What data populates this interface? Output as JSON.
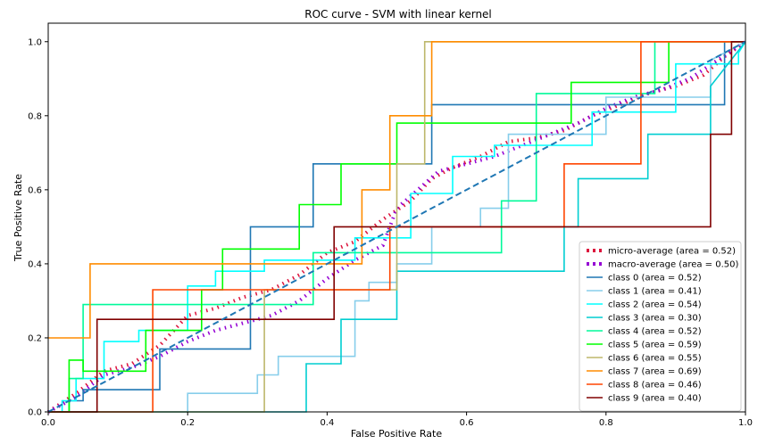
{
  "chart_data": {
    "type": "line",
    "title": "ROC curve - SVM with linear kernel",
    "xlabel": "False Positive Rate",
    "ylabel": "True Positive Rate",
    "xlim": [
      0,
      1
    ],
    "ylim": [
      0,
      1.05
    ],
    "x_ticks": [
      "0.0",
      "0.2",
      "0.4",
      "0.6",
      "0.8",
      "1.0"
    ],
    "y_ticks": [
      "0.0",
      "0.2",
      "0.4",
      "0.6",
      "0.8",
      "1.0"
    ],
    "grid": false,
    "legend_position": "lower-right",
    "diagonal": {
      "x": [
        0,
        1
      ],
      "y": [
        0,
        1
      ],
      "color": "#1f77b4",
      "style": "dashed"
    },
    "series": [
      {
        "name": "micro-average (area = 0.52)",
        "color": "#dc143c",
        "style": "dotted",
        "x": [
          0,
          0.04,
          0.08,
          0.12,
          0.16,
          0.2,
          0.24,
          0.28,
          0.32,
          0.36,
          0.4,
          0.44,
          0.48,
          0.52,
          0.55,
          0.58,
          0.62,
          0.66,
          0.7,
          0.74,
          0.78,
          0.82,
          0.86,
          0.9,
          0.94,
          0.97,
          1
        ],
        "y": [
          0,
          0.05,
          0.11,
          0.13,
          0.18,
          0.26,
          0.28,
          0.31,
          0.33,
          0.37,
          0.43,
          0.46,
          0.52,
          0.57,
          0.63,
          0.66,
          0.69,
          0.73,
          0.74,
          0.76,
          0.8,
          0.83,
          0.86,
          0.88,
          0.91,
          0.96,
          1
        ]
      },
      {
        "name": "macro-average (area = 0.50)",
        "color": "#9400d3",
        "style": "dotted",
        "x": [
          0,
          0.04,
          0.08,
          0.12,
          0.16,
          0.2,
          0.24,
          0.28,
          0.32,
          0.36,
          0.4,
          0.44,
          0.48,
          0.5,
          0.53,
          0.56,
          0.6,
          0.64,
          0.68,
          0.72,
          0.76,
          0.8,
          0.84,
          0.88,
          0.92,
          0.96,
          1
        ],
        "y": [
          0,
          0.04,
          0.1,
          0.12,
          0.15,
          0.19,
          0.22,
          0.24,
          0.26,
          0.3,
          0.36,
          0.41,
          0.45,
          0.55,
          0.6,
          0.65,
          0.67,
          0.69,
          0.72,
          0.75,
          0.78,
          0.82,
          0.85,
          0.87,
          0.9,
          0.95,
          1
        ]
      },
      {
        "name": "class 0 (area = 0.52)",
        "color": "#1f77b4",
        "style": "solid",
        "x": [
          0,
          0.03,
          0.03,
          0.05,
          0.05,
          0.16,
          0.16,
          0.29,
          0.29,
          0.38,
          0.38,
          0.55,
          0.55,
          0.97,
          0.97,
          1
        ],
        "y": [
          0,
          0,
          0.03,
          0.03,
          0.06,
          0.06,
          0.17,
          0.17,
          0.5,
          0.5,
          0.67,
          0.67,
          0.83,
          0.83,
          1,
          1
        ]
      },
      {
        "name": "class 1 (area = 0.41)",
        "color": "#87ceeb",
        "style": "solid",
        "x": [
          0,
          0.2,
          0.2,
          0.3,
          0.3,
          0.33,
          0.33,
          0.44,
          0.44,
          0.46,
          0.46,
          0.5,
          0.5,
          0.55,
          0.55,
          0.62,
          0.62,
          0.66,
          0.66,
          0.8,
          0.8,
          0.95,
          0.95,
          1
        ],
        "y": [
          0,
          0,
          0.05,
          0.05,
          0.1,
          0.1,
          0.15,
          0.15,
          0.3,
          0.3,
          0.35,
          0.35,
          0.4,
          0.4,
          0.5,
          0.5,
          0.55,
          0.55,
          0.75,
          0.75,
          0.85,
          0.85,
          0.95,
          1
        ]
      },
      {
        "name": "class 2 (area = 0.54)",
        "color": "#00ffff",
        "style": "solid",
        "x": [
          0,
          0.02,
          0.02,
          0.04,
          0.04,
          0.08,
          0.08,
          0.13,
          0.13,
          0.2,
          0.2,
          0.24,
          0.24,
          0.31,
          0.31,
          0.44,
          0.44,
          0.52,
          0.52,
          0.58,
          0.58,
          0.64,
          0.64,
          0.78,
          0.78,
          0.9,
          0.9,
          0.99,
          0.99,
          1
        ],
        "y": [
          0,
          0,
          0.03,
          0.03,
          0.09,
          0.09,
          0.19,
          0.19,
          0.22,
          0.22,
          0.34,
          0.34,
          0.38,
          0.38,
          0.41,
          0.41,
          0.47,
          0.47,
          0.59,
          0.59,
          0.69,
          0.69,
          0.72,
          0.72,
          0.81,
          0.81,
          0.94,
          0.94,
          0.97,
          1
        ]
      },
      {
        "name": "class 3 (area = 0.30)",
        "color": "#00ced1",
        "style": "solid",
        "x": [
          0,
          0.37,
          0.37,
          0.42,
          0.42,
          0.5,
          0.5,
          0.74,
          0.74,
          0.76,
          0.76,
          0.86,
          0.86,
          0.95,
          0.95,
          1
        ],
        "y": [
          0,
          0,
          0.13,
          0.13,
          0.25,
          0.25,
          0.38,
          0.38,
          0.5,
          0.5,
          0.63,
          0.63,
          0.75,
          0.75,
          0.88,
          1
        ]
      },
      {
        "name": "class 4 (area = 0.52)",
        "color": "#00fa9a",
        "style": "solid",
        "x": [
          0,
          0.03,
          0.03,
          0.05,
          0.05,
          0.38,
          0.38,
          0.65,
          0.65,
          0.7,
          0.7,
          0.76,
          0.76,
          0.8,
          0.8,
          0.87,
          0.87,
          1
        ],
        "y": [
          0,
          0,
          0.09,
          0.09,
          0.29,
          0.29,
          0.43,
          0.43,
          0.57,
          0.57,
          0.86,
          0.86,
          0.86,
          0.86,
          0.86,
          0.86,
          1,
          1
        ]
      },
      {
        "name": "class 5 (area = 0.59)",
        "color": "#00ff00",
        "style": "solid",
        "x": [
          0,
          0.03,
          0.03,
          0.05,
          0.05,
          0.14,
          0.14,
          0.22,
          0.22,
          0.25,
          0.25,
          0.36,
          0.36,
          0.42,
          0.42,
          0.5,
          0.5,
          0.75,
          0.75,
          0.89,
          0.89,
          0.99,
          0.99,
          1
        ],
        "y": [
          0,
          0,
          0.14,
          0.14,
          0.11,
          0.11,
          0.22,
          0.22,
          0.33,
          0.33,
          0.44,
          0.44,
          0.56,
          0.56,
          0.67,
          0.67,
          0.78,
          0.78,
          0.89,
          0.89,
          1,
          1,
          1,
          1
        ]
      },
      {
        "name": "class 6 (area = 0.55)",
        "color": "#bdb76b",
        "style": "solid",
        "x": [
          0,
          0.31,
          0.31,
          0.5,
          0.5,
          0.54,
          0.54,
          0.99,
          0.99,
          1
        ],
        "y": [
          0,
          0,
          0.33,
          0.33,
          0.67,
          0.67,
          1,
          1,
          1,
          1
        ]
      },
      {
        "name": "class 7 (area = 0.69)",
        "color": "#ff8c00",
        "style": "solid",
        "x": [
          0,
          0.06,
          0.06,
          0.45,
          0.45,
          0.49,
          0.49,
          0.55,
          0.55,
          1
        ],
        "y": [
          0.2,
          0.2,
          0.4,
          0.4,
          0.6,
          0.6,
          0.8,
          0.8,
          1,
          1
        ]
      },
      {
        "name": "class 8 (area = 0.46)",
        "color": "#ff4500",
        "style": "solid",
        "x": [
          0,
          0.15,
          0.15,
          0.49,
          0.49,
          0.74,
          0.74,
          0.85,
          0.85,
          1
        ],
        "y": [
          0,
          0,
          0.33,
          0.33,
          0.5,
          0.5,
          0.67,
          0.67,
          1,
          1
        ]
      },
      {
        "name": "class 9 (area = 0.40)",
        "color": "#800000",
        "style": "solid",
        "x": [
          0,
          0.07,
          0.07,
          0.41,
          0.41,
          0.95,
          0.95,
          0.98,
          0.98,
          1
        ],
        "y": [
          0,
          0,
          0.25,
          0.25,
          0.5,
          0.5,
          0.75,
          0.75,
          1,
          1
        ]
      }
    ]
  }
}
